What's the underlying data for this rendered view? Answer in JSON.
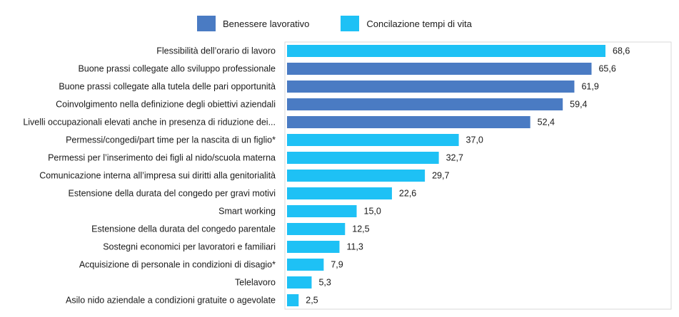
{
  "chart_data": {
    "type": "bar",
    "orientation": "horizontal",
    "legend": {
      "placement": "top-center",
      "entries": [
        {
          "key": "benessere",
          "name": "Benessere lavorativo",
          "color": "#4A7BC3"
        },
        {
          "key": "conciliazione",
          "name": "Concilazione tempi di vita",
          "color": "#1EC1F5"
        }
      ]
    },
    "xlim": [
      0,
      70
    ],
    "grid": false,
    "categories": [
      "Flessibilità dell’orario di lavoro",
      "Buone prassi collegate allo sviluppo professionale",
      "Buone prassi collegate alla tutela delle pari opportunità",
      "Coinvolgimento nella definizione degli obiettivi aziendali",
      "Livelli occupazionali elevati anche in presenza di riduzione dei...",
      "Permessi/congedi/part time per la nascita di un figlio*",
      "Permessi per l’inserimento dei figli al nido/scuola materna",
      "Comunicazione interna all’impresa sui diritti alla genitorialità",
      "Estensione della durata del congedo per gravi motivi",
      "Smart working",
      "Estensione della durata del congedo parentale",
      "Sostegni economici per lavoratori e familiari",
      "Acquisizione di personale in condizioni di disagio*",
      "Telelavoro",
      "Asilo nido aziendale a condizioni gratuite o agevolate"
    ],
    "values": [
      68.6,
      65.6,
      61.9,
      59.4,
      52.4,
      37.0,
      32.7,
      29.7,
      22.6,
      15.0,
      12.5,
      11.3,
      7.9,
      5.3,
      2.5
    ],
    "value_labels": [
      "68,6",
      "65,6",
      "61,9",
      "59,4",
      "52,4",
      "37,0",
      "32,7",
      "29,7",
      "22,6",
      "15,0",
      "12,5",
      "11,3",
      "7,9",
      "5,3",
      "2,5"
    ],
    "series_keys": [
      "conciliazione",
      "benessere",
      "benessere",
      "benessere",
      "benessere",
      "conciliazione",
      "conciliazione",
      "conciliazione",
      "conciliazione",
      "conciliazione",
      "conciliazione",
      "conciliazione",
      "conciliazione",
      "conciliazione",
      "conciliazione"
    ]
  }
}
